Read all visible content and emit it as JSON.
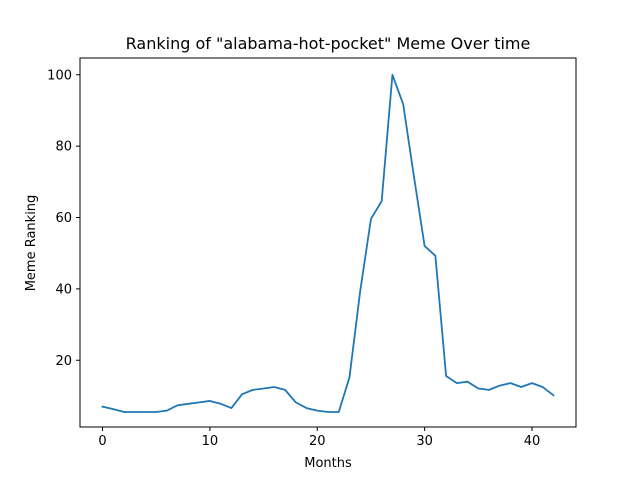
{
  "chart_data": {
    "type": "line",
    "title": "Ranking of \"alabama-hot-pocket\" Meme Over time",
    "xlabel": "Months",
    "ylabel": "Meme Ranking",
    "xlim": [
      -2.1,
      44.1
    ],
    "ylim": [
      1.3,
      104.7
    ],
    "xticks": [
      0,
      10,
      20,
      30,
      40
    ],
    "yticks": [
      20,
      40,
      60,
      80,
      100
    ],
    "grid": false,
    "series": [
      {
        "color": "#1f77b4",
        "x": [
          0,
          1,
          2,
          3,
          4,
          5,
          6,
          7,
          8,
          9,
          10,
          11,
          12,
          13,
          14,
          15,
          16,
          17,
          18,
          19,
          20,
          21,
          22,
          23,
          24,
          25,
          26,
          27,
          28,
          29,
          30,
          31,
          32,
          33,
          34,
          35,
          36,
          37,
          38,
          39,
          40,
          41,
          42
        ],
        "y": [
          7.0,
          6.3,
          5.5,
          5.5,
          5.5,
          5.5,
          5.9,
          7.4,
          7.8,
          8.2,
          8.6,
          7.8,
          6.6,
          10.5,
          11.7,
          12.1,
          12.5,
          11.7,
          8.2,
          6.6,
          5.9,
          5.5,
          5.5,
          15.2,
          39.4,
          59.6,
          64.6,
          100,
          91.8,
          71.6,
          52.0,
          49.3,
          15.6,
          13.6,
          14.0,
          12.1,
          11.7,
          12.9,
          13.6,
          12.5,
          13.6,
          12.5,
          10.2
        ]
      }
    ]
  }
}
